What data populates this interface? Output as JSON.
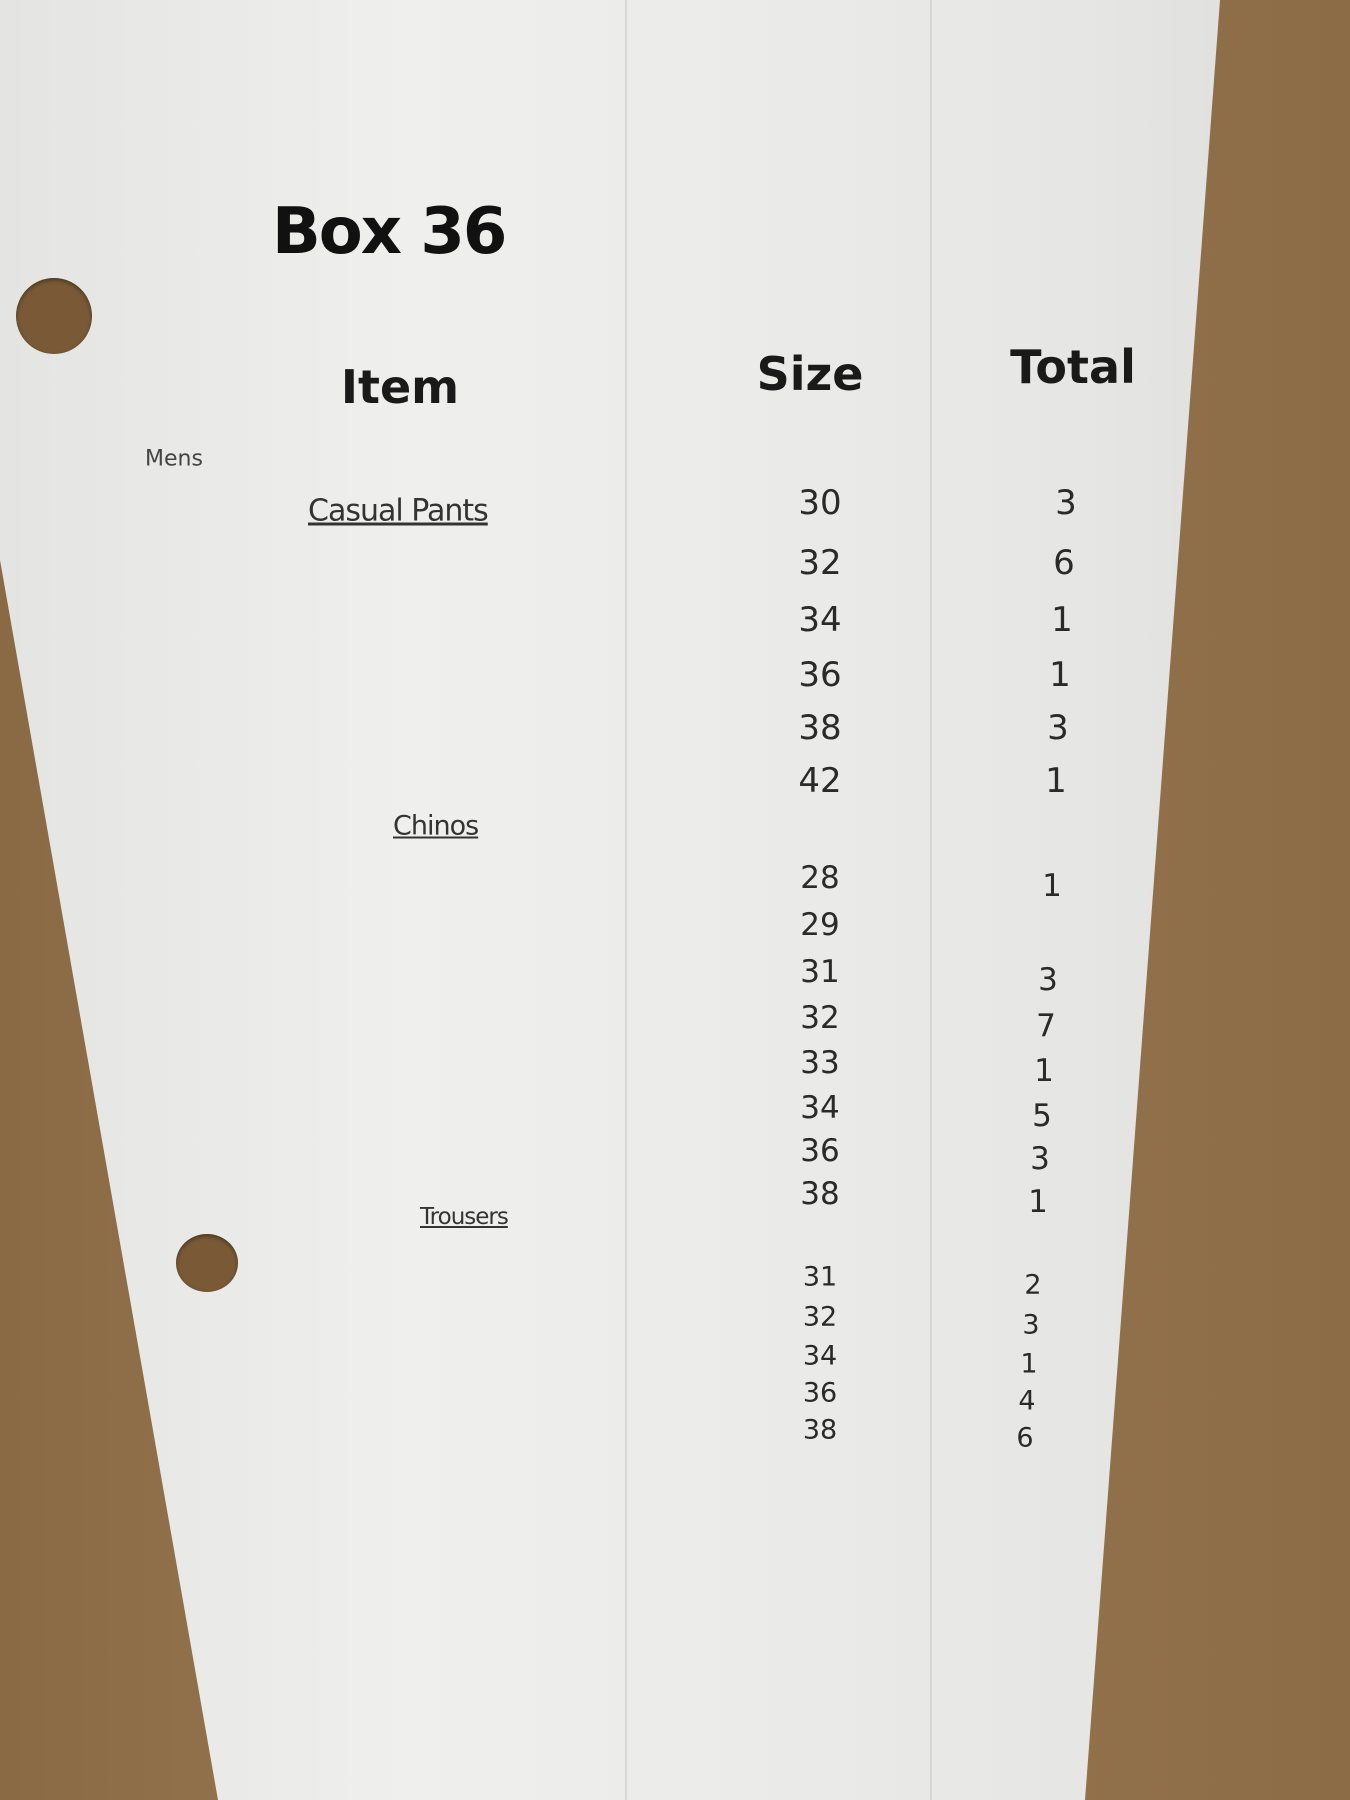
{
  "title": "Box 36",
  "headers": {
    "item": "Item",
    "size": "Size",
    "total": "Total"
  },
  "category": "Mens",
  "sections": [
    {
      "name": "Casual Pants",
      "rows": [
        {
          "size": "30",
          "total": "3"
        },
        {
          "size": "32",
          "total": "6"
        },
        {
          "size": "34",
          "total": "1"
        },
        {
          "size": "36",
          "total": "1"
        },
        {
          "size": "38",
          "total": "3"
        },
        {
          "size": "42",
          "total": "1"
        }
      ]
    },
    {
      "name": "Chinos",
      "rows": [
        {
          "size": "28",
          "total": "1"
        },
        {
          "size": "29",
          "total": ""
        },
        {
          "size": "31",
          "total": "3"
        },
        {
          "size": "32",
          "total": "7"
        },
        {
          "size": "33",
          "total": "1"
        },
        {
          "size": "34",
          "total": "5"
        },
        {
          "size": "36",
          "total": "3"
        },
        {
          "size": "38",
          "total": "1"
        }
      ]
    },
    {
      "name": "Trousers",
      "rows": [
        {
          "size": "31",
          "total": "2"
        },
        {
          "size": "32",
          "total": "3"
        },
        {
          "size": "34",
          "total": "1"
        },
        {
          "size": "36",
          "total": "4"
        },
        {
          "size": "38",
          "total": "6"
        }
      ]
    }
  ]
}
